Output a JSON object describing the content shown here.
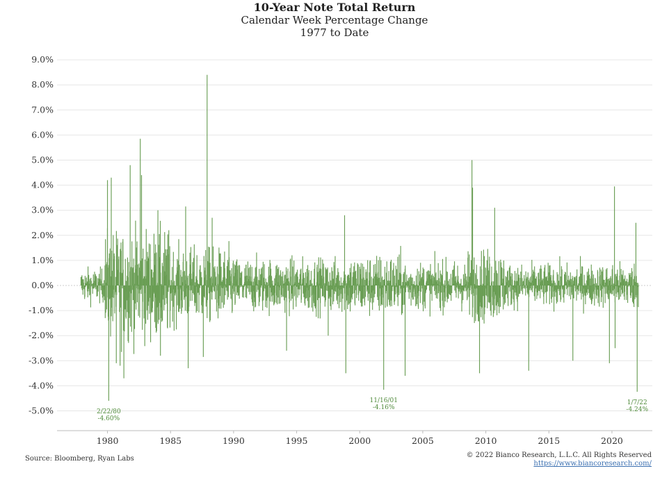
{
  "header": {
    "title": "10-Year Note Total Return",
    "subtitle1": "Calendar Week Percentage Change",
    "subtitle2": "1977 to Date"
  },
  "footer": {
    "source": "Source: Bloomberg, Ryan Labs",
    "copyright": "© 2022 Bianco Research, L.L.C. All Rights Reserved",
    "link": "https://www.biancoresearch.com/"
  },
  "colors": {
    "series": "#6a9e55",
    "annotation": "#4f8a3a",
    "grid": "#e6e6e6",
    "zero": "#cccccc"
  },
  "chart_data": {
    "type": "bar",
    "title": "10-Year Note Total Return",
    "subtitle": "Calendar Week Percentage Change",
    "xlabel": "",
    "ylabel": "",
    "xlim": [
      1976.0,
      2023.2
    ],
    "ylim": [
      -6.0,
      9.0
    ],
    "x_ticks": [
      1980,
      1985,
      1990,
      1995,
      2000,
      2005,
      2010,
      2015,
      2020
    ],
    "y_ticks": [
      9,
      8,
      7,
      6,
      5,
      4,
      3,
      2,
      1,
      0,
      -1,
      -2,
      -3,
      -4,
      -5
    ],
    "y_tick_labels": [
      "9.0%",
      "8.0%",
      "7.0%",
      "6.0%",
      "5.0%",
      "4.0%",
      "3.0%",
      "2.0%",
      "1.0%",
      "0.0%",
      "-1.0%",
      "-2.0%",
      "-3.0%",
      "-4.0%",
      "-5.0%"
    ],
    "grid": true,
    "series_color": "#6a9e55",
    "volatility_regimes": [
      {
        "from": 1977.9,
        "to": 1979.8,
        "amp": 0.6
      },
      {
        "from": 1979.8,
        "to": 1985.0,
        "amp": 1.9
      },
      {
        "from": 1985.0,
        "to": 1990.0,
        "amp": 1.3
      },
      {
        "from": 1990.0,
        "to": 1999.0,
        "amp": 0.95
      },
      {
        "from": 1999.0,
        "to": 2003.5,
        "amp": 1.1
      },
      {
        "from": 2003.5,
        "to": 2008.5,
        "amp": 0.85
      },
      {
        "from": 2008.5,
        "to": 2011.5,
        "amp": 1.25
      },
      {
        "from": 2011.5,
        "to": 2020.0,
        "amp": 0.75
      },
      {
        "from": 2020.0,
        "to": 2022.1,
        "amp": 0.8
      }
    ],
    "spikes": [
      {
        "x": 1980.1,
        "y": -4.6
      },
      {
        "x": 1980.0,
        "y": 4.2
      },
      {
        "x": 1980.3,
        "y": 4.3
      },
      {
        "x": 1981.8,
        "y": 4.8
      },
      {
        "x": 1982.6,
        "y": 5.85
      },
      {
        "x": 1982.7,
        "y": 4.4
      },
      {
        "x": 1981.3,
        "y": -3.7
      },
      {
        "x": 1981.0,
        "y": -3.2
      },
      {
        "x": 1980.7,
        "y": -3.1
      },
      {
        "x": 1984.0,
        "y": 3.0
      },
      {
        "x": 1984.2,
        "y": -2.8
      },
      {
        "x": 1986.2,
        "y": 3.15
      },
      {
        "x": 1986.4,
        "y": -3.3
      },
      {
        "x": 1987.9,
        "y": 8.4
      },
      {
        "x": 1987.6,
        "y": -2.85
      },
      {
        "x": 1988.3,
        "y": 2.7
      },
      {
        "x": 1994.2,
        "y": -2.6
      },
      {
        "x": 1997.5,
        "y": -2.0
      },
      {
        "x": 1998.8,
        "y": 2.8
      },
      {
        "x": 1998.9,
        "y": -3.5
      },
      {
        "x": 2001.9,
        "y": -4.16
      },
      {
        "x": 2003.6,
        "y": -3.6
      },
      {
        "x": 2008.9,
        "y": 5.0
      },
      {
        "x": 2008.95,
        "y": 3.9
      },
      {
        "x": 2009.5,
        "y": -3.5
      },
      {
        "x": 2010.7,
        "y": 3.1
      },
      {
        "x": 2013.4,
        "y": -3.4
      },
      {
        "x": 2016.9,
        "y": -3.0
      },
      {
        "x": 2019.8,
        "y": -3.1
      },
      {
        "x": 2020.2,
        "y": 3.95
      },
      {
        "x": 2020.25,
        "y": -2.5
      },
      {
        "x": 2021.9,
        "y": 2.5
      },
      {
        "x": 2022.0,
        "y": -4.24
      }
    ],
    "annotations": [
      {
        "date": "2/22/80",
        "value": "-4.60%",
        "x": 1980.1,
        "y": -4.6
      },
      {
        "date": "11/16/01",
        "value": "-4.16%",
        "x": 2001.9,
        "y": -4.16
      },
      {
        "date": "1/7/22",
        "value": "-4.24%",
        "x": 2022.0,
        "y": -4.24
      }
    ]
  }
}
